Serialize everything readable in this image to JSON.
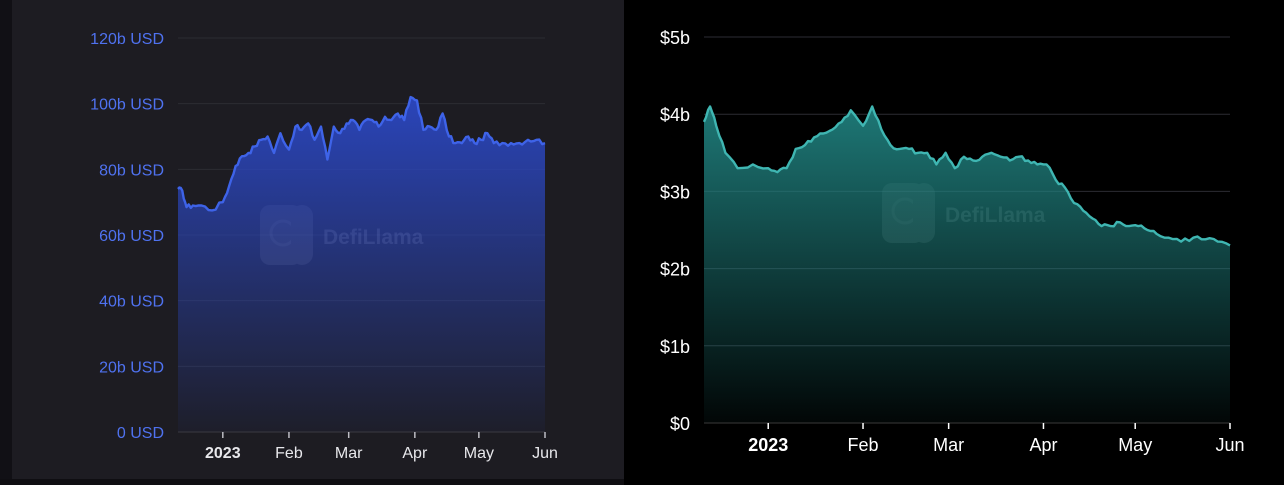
{
  "brand": {
    "watermark_text": "DefiLlama"
  },
  "colors": {
    "left_background": "#1d1c22",
    "left_line": "#3e63e8",
    "left_fill_top": "#2b47c2",
    "left_axis_text": "#4f72f0",
    "right_background": "#000000",
    "right_line": "#3fb6b2",
    "right_fill_top": "#1f7e7c",
    "right_axis_text": "#ffffff",
    "grid": "#2c2c33"
  },
  "chart_data": [
    {
      "type": "area",
      "title": "",
      "xlabel": "",
      "ylabel": "",
      "x_tick_labels": [
        "2023",
        "Feb",
        "Mar",
        "Apr",
        "May",
        "Jun"
      ],
      "y_tick_labels": [
        "0 USD",
        "20b USD",
        "40b USD",
        "60b USD",
        "80b USD",
        "100b USD",
        "120b USD"
      ],
      "ylim": [
        0,
        120
      ],
      "xlim": [
        "2022-12-11",
        "2023-06-01"
      ],
      "grid": true,
      "x": [
        "2022-12-11",
        "2022-12-13",
        "2022-12-15",
        "2022-12-18",
        "2022-12-22",
        "2022-12-27",
        "2023-01-01",
        "2023-01-04",
        "2023-01-07",
        "2023-01-10",
        "2023-01-13",
        "2023-01-16",
        "2023-01-19",
        "2023-01-22",
        "2023-01-25",
        "2023-01-28",
        "2023-02-01",
        "2023-02-04",
        "2023-02-07",
        "2023-02-10",
        "2023-02-13",
        "2023-02-16",
        "2023-02-19",
        "2023-02-22",
        "2023-02-25",
        "2023-02-28",
        "2023-03-03",
        "2023-03-06",
        "2023-03-09",
        "2023-03-12",
        "2023-03-15",
        "2023-03-18",
        "2023-03-21",
        "2023-03-24",
        "2023-03-27",
        "2023-03-30",
        "2023-04-02",
        "2023-04-05",
        "2023-04-08",
        "2023-04-11",
        "2023-04-14",
        "2023-04-17",
        "2023-04-20",
        "2023-04-23",
        "2023-04-26",
        "2023-04-29",
        "2023-05-02",
        "2023-05-05",
        "2023-05-08",
        "2023-05-12",
        "2023-05-16",
        "2023-05-20",
        "2023-05-24",
        "2023-05-28",
        "2023-06-01"
      ],
      "series": [
        {
          "values": [
            74,
            73.5,
            68.5,
            69,
            69,
            67.5,
            70,
            75,
            81,
            84,
            85,
            87,
            89,
            90,
            85,
            91,
            86,
            93,
            92,
            94,
            89,
            93,
            83,
            93,
            91,
            94,
            95,
            92,
            95,
            95,
            93,
            96,
            95,
            97,
            95,
            102,
            101,
            92,
            93,
            92,
            97,
            90,
            88,
            88,
            90,
            88,
            89,
            91,
            88,
            88,
            88,
            88,
            89,
            89,
            88
          ]
        }
      ]
    },
    {
      "type": "area",
      "title": "",
      "xlabel": "",
      "ylabel": "",
      "x_tick_labels": [
        "2023",
        "Feb",
        "Mar",
        "Apr",
        "May",
        "Jun"
      ],
      "y_tick_labels": [
        "$0",
        "$1b",
        "$2b",
        "$3b",
        "$4b",
        "$5b"
      ],
      "ylim": [
        0,
        5
      ],
      "xlim": [
        "2022-12-11",
        "2023-06-01"
      ],
      "grid": true,
      "x": [
        "2022-12-11",
        "2022-12-13",
        "2022-12-15",
        "2022-12-18",
        "2022-12-22",
        "2022-12-27",
        "2023-01-01",
        "2023-01-04",
        "2023-01-07",
        "2023-01-10",
        "2023-01-13",
        "2023-01-16",
        "2023-01-19",
        "2023-01-22",
        "2023-01-25",
        "2023-01-28",
        "2023-02-01",
        "2023-02-04",
        "2023-02-07",
        "2023-02-10",
        "2023-02-13",
        "2023-02-16",
        "2023-02-19",
        "2023-02-22",
        "2023-02-25",
        "2023-02-28",
        "2023-03-03",
        "2023-03-06",
        "2023-03-09",
        "2023-03-12",
        "2023-03-15",
        "2023-03-18",
        "2023-03-21",
        "2023-03-24",
        "2023-03-27",
        "2023-03-30",
        "2023-04-02",
        "2023-04-05",
        "2023-04-08",
        "2023-04-11",
        "2023-04-14",
        "2023-04-17",
        "2023-04-20",
        "2023-04-23",
        "2023-04-26",
        "2023-04-29",
        "2023-05-02",
        "2023-05-05",
        "2023-05-08",
        "2023-05-12",
        "2023-05-16",
        "2023-05-20",
        "2023-05-24",
        "2023-05-28",
        "2023-06-01"
      ],
      "series": [
        {
          "values": [
            3.9,
            4.1,
            3.85,
            3.5,
            3.3,
            3.35,
            3.3,
            3.25,
            3.3,
            3.55,
            3.6,
            3.7,
            3.75,
            3.8,
            3.9,
            4.05,
            3.85,
            4.1,
            3.8,
            3.6,
            3.55,
            3.55,
            3.5,
            3.5,
            3.35,
            3.5,
            3.3,
            3.45,
            3.4,
            3.45,
            3.5,
            3.45,
            3.4,
            3.45,
            3.4,
            3.35,
            3.35,
            3.15,
            3.05,
            2.85,
            2.75,
            2.65,
            2.55,
            2.55,
            2.6,
            2.55,
            2.55,
            2.5,
            2.45,
            2.4,
            2.35,
            2.4,
            2.38,
            2.35,
            2.3
          ]
        }
      ]
    }
  ]
}
